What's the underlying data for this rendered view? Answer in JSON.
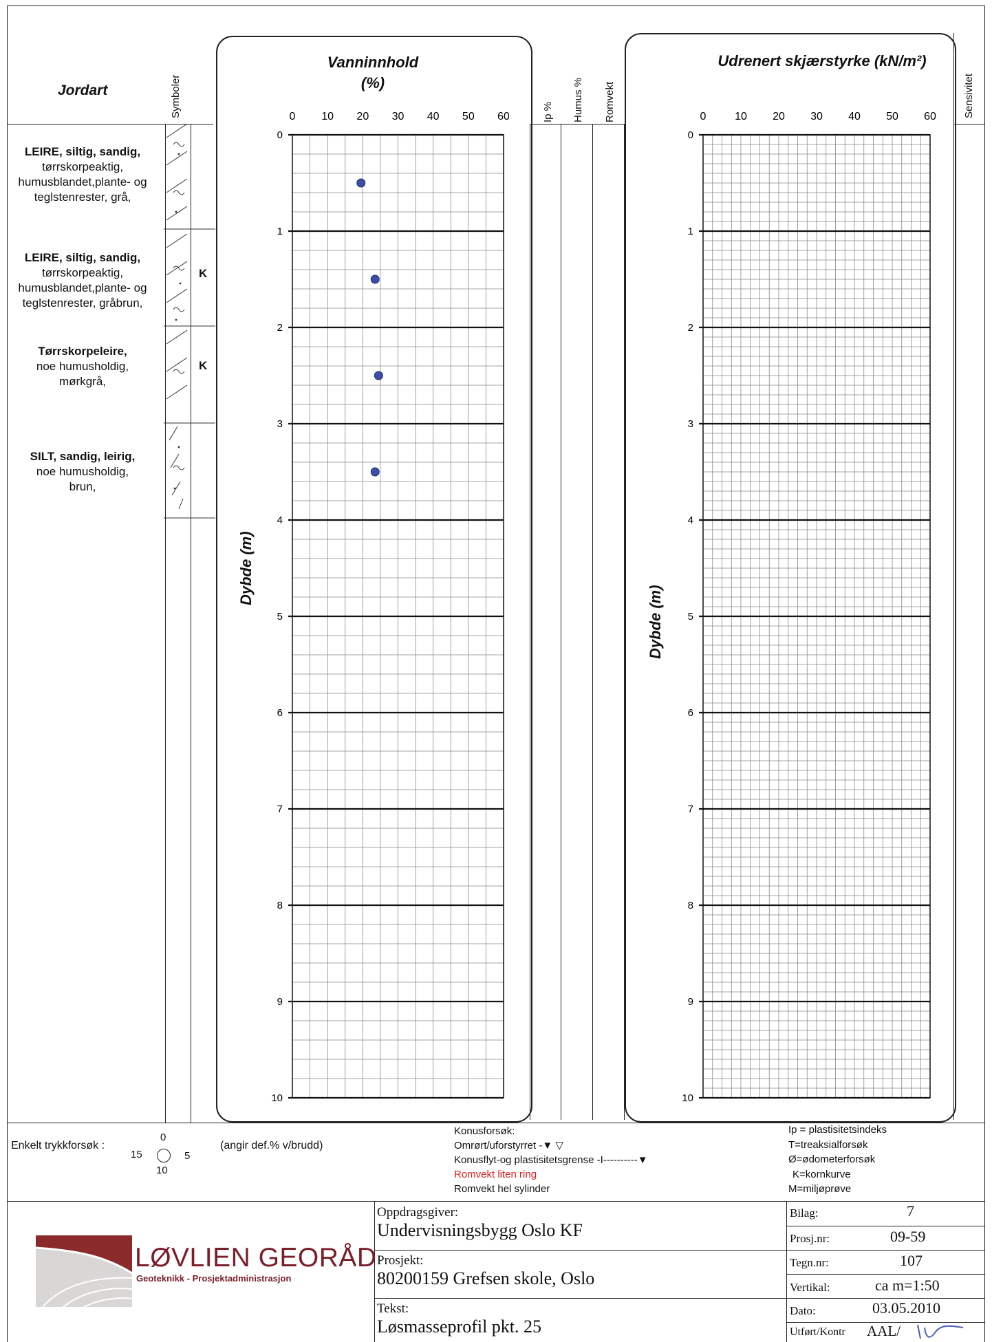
{
  "header": {
    "jordart": "Jordart",
    "symboler": "Symboler",
    "ip": "Ip %",
    "humus": "Humus %",
    "romvekt": "Romvekt",
    "sensitivitet": "Sensivitet"
  },
  "soil_layers": [
    {
      "name": "LEIRE, siltig, sandig,",
      "lines": [
        "tørrskorpeaktig,",
        "humusblandet,plante- og",
        "teglstenrester, grå,"
      ],
      "k": ""
    },
    {
      "name": "LEIRE, siltig, sandig,",
      "lines": [
        "tørrskorpeaktig,",
        "humusblandet,plante- og",
        "teglstenrester, gråbrun,"
      ],
      "k": "K"
    },
    {
      "name": "Tørrskorpeleire,",
      "lines": [
        "noe humusholdig,",
        "mørkgrå,"
      ],
      "k": "K"
    },
    {
      "name": "SILT, sandig, leirig,",
      "lines": [
        "noe humusholdig,",
        "brun,"
      ],
      "k": ""
    }
  ],
  "chart_data": [
    {
      "type": "scatter",
      "title": "Vanninnhold",
      "subtitle": "(%)",
      "ylabel": "Dybde (m)",
      "xlim": [
        0,
        60
      ],
      "ylim": [
        0,
        10
      ],
      "x_ticks": [
        0,
        10,
        20,
        30,
        40,
        50,
        60
      ],
      "y_ticks": [
        0,
        1,
        2,
        3,
        4,
        5,
        6,
        7,
        8,
        9,
        10
      ],
      "grid": true,
      "points": [
        {
          "x": 19.5,
          "y": 0.5
        },
        {
          "x": 23.5,
          "y": 1.5
        },
        {
          "x": 24.5,
          "y": 2.5
        },
        {
          "x": 23.5,
          "y": 3.5
        }
      ],
      "point_color": "#3b4fa8"
    },
    {
      "type": "scatter",
      "title": "Udrenert skjærstyrke (kN/m²)",
      "ylabel": "Dybde (m)",
      "xlim": [
        0,
        60
      ],
      "ylim": [
        0,
        10
      ],
      "x_ticks": [
        0,
        10,
        20,
        30,
        40,
        50,
        60
      ],
      "y_ticks": [
        0,
        1,
        2,
        3,
        4,
        5,
        6,
        7,
        8,
        9,
        10
      ],
      "grid": true,
      "points": []
    }
  ],
  "legend": {
    "trykk_label": "Enkelt trykkforsøk :",
    "dial_top": "0",
    "dial_left": "15",
    "dial_right": "5",
    "dial_bottom": "10",
    "trykk_note": "(angir def.% v/brudd)",
    "konus_title": "Konusforsøk:",
    "konus_omrort": "Omrørt/uforstyrret -",
    "konus_flyt": "Konusflyt-og plastisitetsgrense -I----------",
    "romvekt_ring": "Romvekt liten ring",
    "romvekt_sylinder": "Romvekt hel sylinder",
    "romvekt_ring_color": "#d62020",
    "abbr": [
      "Ip = plastisitetsindeks",
      "T=treaksialforsøk",
      "Ø=ødometerforsøk",
      "K=kornkurve",
      "M=miljøprøve"
    ]
  },
  "title_block": {
    "company": "LØVLIEN GEORÅD",
    "tagline": "Geoteknikk - Prosjektadministrasjon",
    "oppdragsgiver_label": "Oppdragsgiver:",
    "oppdragsgiver": "Undervisningsbygg Oslo KF",
    "prosjekt_label": "Prosjekt:",
    "prosjekt": "80200159 Grefsen skole, Oslo",
    "tekst_label": "Tekst:",
    "tekst": "Løsmasseprofil pkt. 25",
    "bilag_label": "Bilag:",
    "bilag": "7",
    "prosjnr_label": "Prosj.nr:",
    "prosjnr": "09-59",
    "tegnnr_label": "Tegn.nr:",
    "tegnnr": "107",
    "vertikal_label": "Vertikal:",
    "vertikal": "ca m=1:50",
    "dato_label": "Dato:",
    "dato": "03.05.2010",
    "utfort_label": "Utført/Kontr",
    "utfort": "AAL/"
  }
}
